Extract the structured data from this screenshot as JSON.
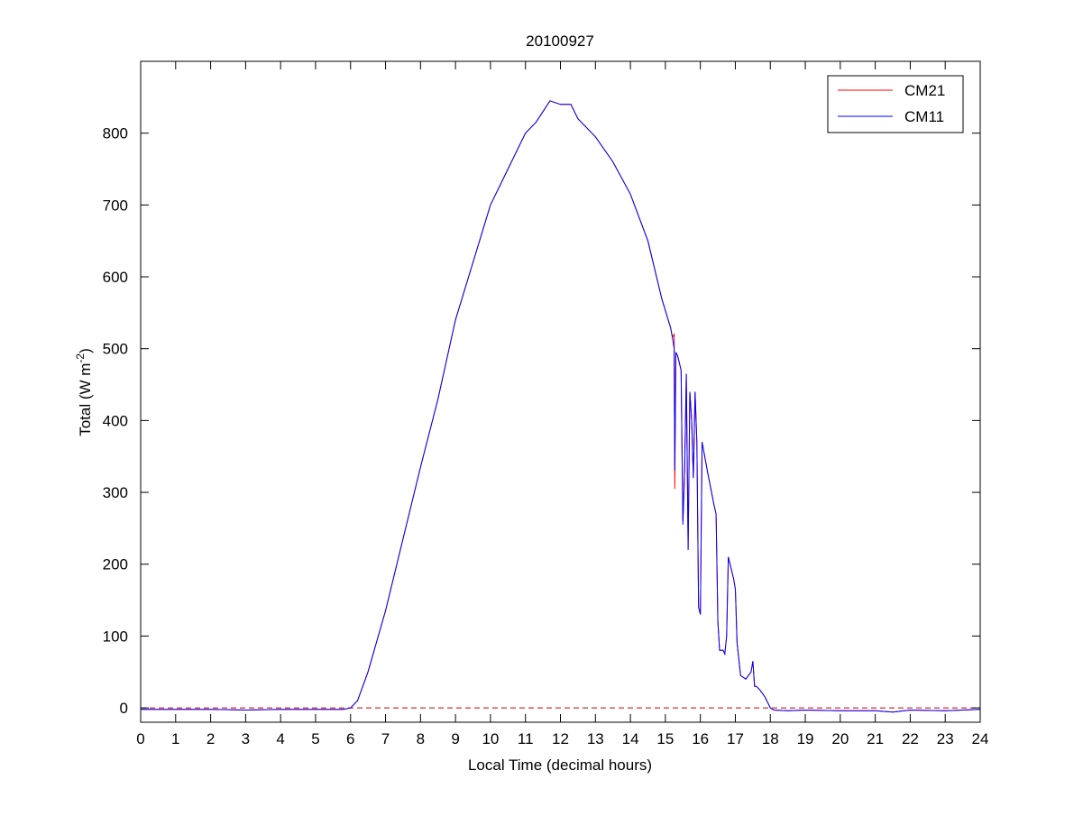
{
  "chart_data": {
    "type": "line",
    "title": "20100927",
    "xlabel": "Local Time (decimal hours)",
    "ylabel": "Total (W m",
    "ylabel_sup": "-2",
    "ylabel_close": ")",
    "xlim": [
      0,
      24
    ],
    "ylim": [
      -20,
      900
    ],
    "xticks": [
      0,
      1,
      2,
      3,
      4,
      5,
      6,
      7,
      8,
      9,
      10,
      11,
      12,
      13,
      14,
      15,
      16,
      17,
      18,
      19,
      20,
      21,
      22,
      23,
      24
    ],
    "yticks": [
      0,
      100,
      200,
      300,
      400,
      500,
      600,
      700,
      800
    ],
    "grid": false,
    "legend_position": "top-right",
    "reference_line": {
      "y": 0,
      "style": "dashed",
      "color": "#cc0000"
    },
    "x": [
      0,
      1,
      2,
      3,
      4,
      5,
      5.8,
      6.0,
      6.2,
      6.5,
      7,
      7.5,
      8,
      8.5,
      9,
      9.5,
      10,
      10.5,
      11,
      11.3,
      11.5,
      11.7,
      12,
      12.3,
      12.5,
      13,
      13.5,
      14,
      14.5,
      14.9,
      15.15,
      15.2,
      15.25,
      15.27,
      15.3,
      15.35,
      15.45,
      15.5,
      15.55,
      15.6,
      15.65,
      15.7,
      15.75,
      15.8,
      15.85,
      15.9,
      15.95,
      16.0,
      16.05,
      16.2,
      16.4,
      16.45,
      16.5,
      16.55,
      16.65,
      16.7,
      16.75,
      16.8,
      16.95,
      17.0,
      17.05,
      17.15,
      17.3,
      17.45,
      17.5,
      17.55,
      17.6,
      17.7,
      17.85,
      18.0,
      18.1,
      18.5,
      19,
      20,
      21,
      21.5,
      22,
      23,
      24
    ],
    "series": [
      {
        "name": "CM21",
        "color": "#ff0000",
        "values": [
          -2,
          -2,
          -2,
          -3,
          -2,
          -2,
          -2,
          0,
          10,
          50,
          135,
          235,
          335,
          430,
          540,
          620,
          700,
          750,
          800,
          815,
          830,
          845,
          840,
          840,
          820,
          795,
          760,
          715,
          650,
          569,
          529,
          516,
          520,
          305,
          495,
          490,
          470,
          260,
          330,
          465,
          220,
          440,
          400,
          320,
          440,
          370,
          140,
          130,
          370,
          330,
          280,
          270,
          120,
          80,
          80,
          75,
          100,
          210,
          180,
          165,
          90,
          45,
          40,
          50,
          65,
          30,
          30,
          25,
          15,
          0,
          -3,
          -4,
          -3,
          -4,
          -4,
          -6,
          -3,
          -4,
          -2
        ]
      },
      {
        "name": "CM11",
        "color": "#0000ff",
        "values": [
          -2,
          -2,
          -2,
          -3,
          -2,
          -2,
          -2,
          0,
          10,
          50,
          135,
          235,
          335,
          430,
          540,
          620,
          700,
          750,
          800,
          815,
          830,
          845,
          840,
          840,
          820,
          795,
          760,
          715,
          650,
          569,
          529,
          516,
          500,
          331,
          495,
          490,
          470,
          255,
          330,
          465,
          220,
          440,
          400,
          320,
          440,
          370,
          140,
          130,
          370,
          330,
          280,
          270,
          120,
          80,
          80,
          75,
          100,
          210,
          180,
          165,
          90,
          45,
          40,
          50,
          65,
          30,
          30,
          25,
          15,
          0,
          -3,
          -4,
          -3,
          -4,
          -4,
          -6,
          -3,
          -4,
          -2
        ]
      }
    ]
  }
}
